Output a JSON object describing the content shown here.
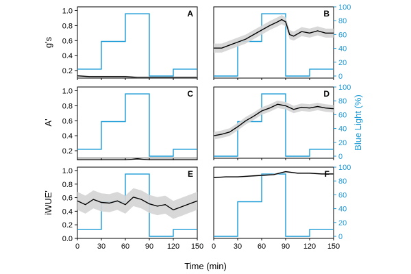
{
  "chart_data": {
    "type": "line",
    "xlabel": "Time (min)",
    "right_ylabel": "Blue Light (%)",
    "x_ticks": [
      0,
      30,
      60,
      90,
      120,
      150
    ],
    "xlim": [
      0,
      150
    ],
    "left_ylim": [
      0.1,
      1.05
    ],
    "right_ylim": [
      -3,
      100
    ],
    "left_ticks": [
      0.2,
      0.4,
      0.6,
      0.8,
      1.0
    ],
    "left_ticks_bottom": [
      0.0,
      0.2,
      0.4,
      0.6,
      0.8,
      1.0
    ],
    "right_ticks": [
      0,
      20,
      40,
      60,
      80,
      100
    ],
    "row_ylabels": [
      "g's",
      "A'",
      "iWUE'"
    ],
    "colors": {
      "response": "#000000",
      "band": "#d4d4d4",
      "light": "#1a9ad6"
    },
    "blue_light_low_high": {
      "x": [
        0,
        30,
        30,
        60,
        60,
        90,
        90,
        120,
        120,
        150
      ],
      "y": [
        10,
        10,
        50,
        50,
        90,
        90,
        0,
        0,
        10,
        10
      ]
    },
    "blue_light_high_low": {
      "x": [
        0,
        30,
        30,
        60,
        60,
        90,
        90,
        120,
        120,
        150
      ],
      "y": [
        0,
        0,
        50,
        50,
        90,
        90,
        0,
        0,
        10,
        10
      ]
    },
    "panels": [
      {
        "letter": "A",
        "series": {
          "x": [
            0,
            15,
            30,
            45,
            60,
            75,
            90,
            105,
            120,
            135,
            150
          ],
          "y": [
            0.13,
            0.12,
            0.12,
            0.12,
            0.12,
            0.11,
            0.11,
            0.11,
            0.11,
            0.11,
            0.11
          ]
        },
        "sd": 0.01
      },
      {
        "letter": "B",
        "series": {
          "x": [
            0,
            10,
            20,
            30,
            40,
            50,
            60,
            70,
            80,
            85,
            90,
            95,
            100,
            110,
            120,
            130,
            140,
            150
          ],
          "y": [
            0.5,
            0.5,
            0.54,
            0.58,
            0.62,
            0.68,
            0.74,
            0.8,
            0.85,
            0.88,
            0.85,
            0.68,
            0.66,
            0.72,
            0.7,
            0.73,
            0.7,
            0.7
          ]
        },
        "sd": 0.06
      },
      {
        "letter": "C",
        "series": {
          "x": [
            0,
            15,
            30,
            45,
            60,
            75,
            90,
            105,
            120,
            135,
            150
          ],
          "y": [
            0.08,
            0.08,
            0.08,
            0.08,
            0.08,
            0.09,
            0.08,
            0.08,
            0.08,
            0.08,
            0.08
          ]
        },
        "sd": 0.01
      },
      {
        "letter": "D",
        "series": {
          "x": [
            0,
            10,
            20,
            30,
            40,
            50,
            60,
            70,
            80,
            90,
            100,
            110,
            120,
            130,
            140,
            150
          ],
          "y": [
            0.4,
            0.42,
            0.45,
            0.52,
            0.6,
            0.66,
            0.73,
            0.77,
            0.82,
            0.8,
            0.75,
            0.78,
            0.77,
            0.79,
            0.77,
            0.76
          ]
        },
        "sd": 0.05
      },
      {
        "letter": "E",
        "series": {
          "x": [
            0,
            10,
            20,
            30,
            40,
            50,
            60,
            70,
            80,
            90,
            100,
            110,
            120,
            130,
            140,
            150
          ],
          "y": [
            0.6,
            0.55,
            0.62,
            0.58,
            0.57,
            0.6,
            0.55,
            0.65,
            0.62,
            0.56,
            0.53,
            0.55,
            0.48,
            0.52,
            0.56,
            0.6
          ]
        },
        "sd": 0.12
      },
      {
        "letter": "F",
        "series": {
          "x": [
            0,
            15,
            30,
            45,
            60,
            75,
            90,
            105,
            120,
            135,
            150
          ],
          "y": [
            0.91,
            0.92,
            0.92,
            0.93,
            0.94,
            0.95,
            0.99,
            0.97,
            0.97,
            0.96,
            0.96
          ]
        },
        "sd": 0.01
      }
    ]
  }
}
